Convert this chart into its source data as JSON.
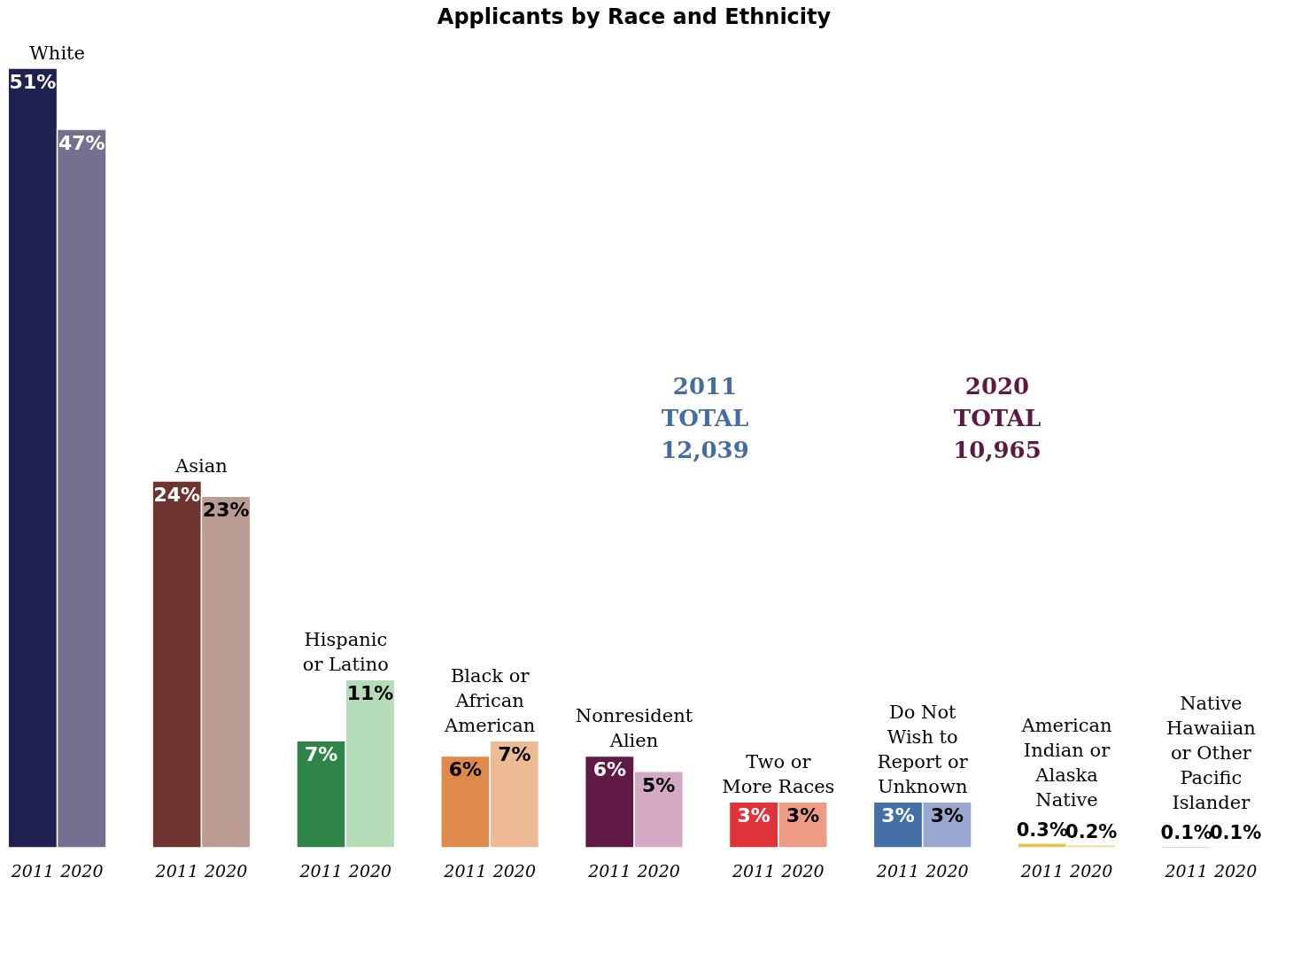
{
  "chart_data": {
    "type": "bar",
    "title": "Applicants by Race and Ethnicity",
    "categories": [
      "White",
      "Asian",
      "Hispanic or Latino",
      "Black or African American",
      "Nonresident Alien",
      "Two or More Races",
      "Do Not Wish to Report or Unknown",
      "American Indian or Alaska Native",
      "Native Hawaiian or Other Pacific Islander"
    ],
    "series": [
      {
        "name": "2011",
        "colors": [
          "#1f2150",
          "#6f3330",
          "#2f8447",
          "#dd8a4a",
          "#5e1a45",
          "#e0343b",
          "#4470a7",
          "#e9c14e",
          "#1c8a78"
        ],
        "values": [
          51,
          24,
          7,
          6,
          6,
          3,
          3,
          0.3,
          0.1
        ],
        "value_labels": [
          "51%",
          "24%",
          "7%",
          "6%",
          "6%",
          "3%",
          "3%",
          "0.3%",
          "0.1%"
        ]
      },
      {
        "name": "2020",
        "colors": [
          "#75708f",
          "#bb9c94",
          "#b5dcb8",
          "#ecbb94",
          "#d3a9c4",
          "#ee9b86",
          "#9aa7cf",
          "#f1dc98",
          "#aee0d8"
        ],
        "values": [
          47,
          23,
          11,
          7,
          5,
          3,
          3,
          0.2,
          0.1
        ],
        "value_labels": [
          "47%",
          "23%",
          "11%",
          "7%",
          "5%",
          "3%",
          "3%",
          "0.2%",
          "0.1%"
        ]
      }
    ],
    "annotations": [
      "2011\nTOTAL\n12,039",
      "2020\nTOTAL\n10,965"
    ]
  }
}
